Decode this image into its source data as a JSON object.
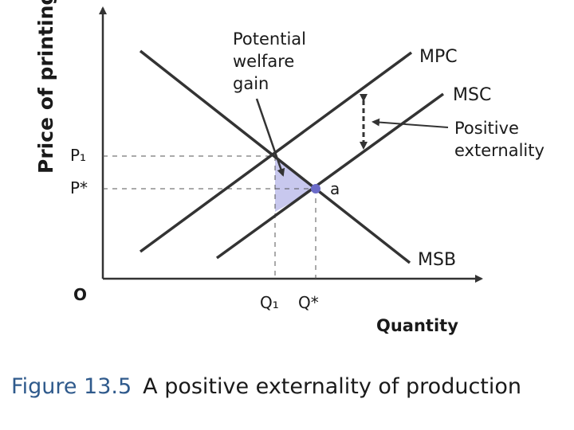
{
  "diagram": {
    "y_axis_label": "Price of printing ($)",
    "x_axis_label": "Quantity",
    "origin_label": "O",
    "price_labels": {
      "p1": "P₁",
      "p_star": "P*"
    },
    "quantity_labels": {
      "q1": "Q₁",
      "q_star": "Q*"
    },
    "curve_labels": {
      "mpc": "MPC",
      "msc": "MSC",
      "msb": "MSB"
    },
    "point_label": "a",
    "annotations": {
      "welfare_gain": [
        "Potential",
        "welfare",
        "gain"
      ],
      "externality": [
        "Positive",
        "externality"
      ]
    },
    "colors": {
      "line": "#333333",
      "shading": "#c8c8ee",
      "point": "#6b6bc8",
      "caption_accent": "#2f5a8c"
    }
  },
  "caption": {
    "figure_number": "Figure 13.5",
    "text": "A positive externality of production"
  }
}
